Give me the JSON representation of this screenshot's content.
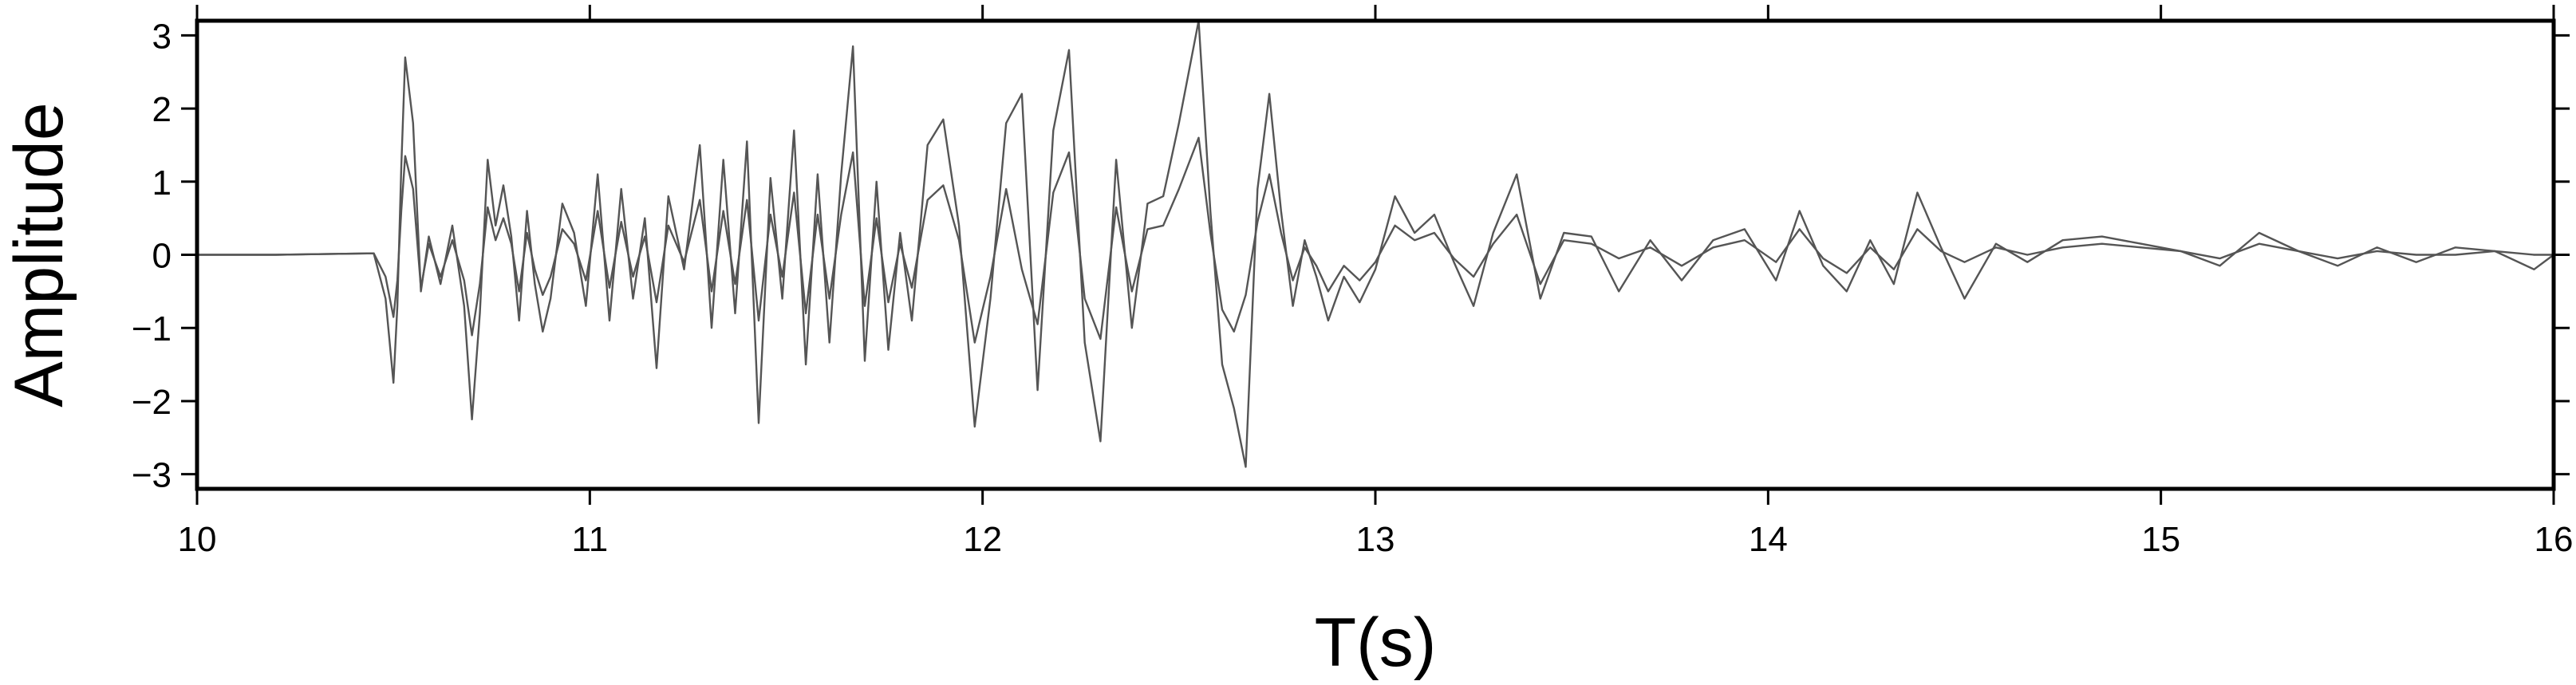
{
  "chart_data": {
    "type": "line",
    "title": "",
    "xlabel": "T(s)",
    "ylabel": "Amplitude",
    "xlim": [
      10,
      16
    ],
    "ylim": [
      -3.2,
      3.2
    ],
    "grid": false,
    "x_ticks": [
      10,
      11,
      12,
      13,
      14,
      15,
      16
    ],
    "x_tick_labels": [
      "10",
      "11",
      "12",
      "13",
      "14",
      "15",
      "16"
    ],
    "y_ticks": [
      -3,
      -2,
      -1,
      0,
      1,
      2,
      3
    ],
    "y_tick_labels": [
      "−3",
      "−2",
      "−1",
      "0",
      "1",
      "2",
      "3"
    ],
    "line_color": "#555555",
    "series": [
      {
        "x": [
          10,
          10.2,
          10.45,
          10.48,
          10.5,
          10.51,
          10.52,
          10.53,
          10.55,
          10.57,
          10.59,
          10.62,
          10.65,
          10.68,
          10.7,
          10.72,
          10.74,
          10.76,
          10.78,
          10.8,
          10.82,
          10.84,
          10.86,
          10.88,
          10.9,
          10.93,
          10.96,
          10.99,
          11.02,
          11.05,
          11.08,
          11.11,
          11.14,
          11.17,
          11.2,
          11.24,
          11.28,
          11.31,
          11.34,
          11.37,
          11.4,
          11.43,
          11.46,
          11.49,
          11.52,
          11.55,
          11.58,
          11.61,
          11.64,
          11.67,
          11.7,
          11.73,
          11.76,
          11.79,
          11.82,
          11.86,
          11.9,
          11.94,
          11.98,
          12.02,
          12.06,
          12.1,
          12.14,
          12.18,
          12.22,
          12.26,
          12.3,
          12.34,
          12.38,
          12.42,
          12.46,
          12.5,
          12.55,
          12.58,
          12.61,
          12.64,
          12.67,
          12.7,
          12.73,
          12.76,
          12.79,
          12.82,
          12.85,
          12.88,
          12.92,
          12.96,
          13.0,
          13.05,
          13.1,
          13.15,
          13.2,
          13.25,
          13.3,
          13.36,
          13.42,
          13.48,
          13.55,
          13.62,
          13.7,
          13.78,
          13.86,
          13.94,
          14.02,
          14.08,
          14.14,
          14.2,
          14.26,
          14.32,
          14.38,
          14.44,
          14.5,
          14.58,
          14.66,
          14.75,
          14.85,
          14.95,
          15.05,
          15.15,
          15.25,
          15.35,
          15.45,
          15.55,
          15.65,
          15.75,
          15.85,
          15.95,
          16.0
        ],
        "values": [
          0,
          0,
          0.02,
          -0.3,
          -0.85,
          -0.35,
          0.6,
          1.35,
          0.9,
          -0.45,
          0.15,
          -0.3,
          0.2,
          -0.35,
          -1.1,
          -0.4,
          0.65,
          0.2,
          0.5,
          0.15,
          -0.5,
          0.3,
          -0.2,
          -0.55,
          -0.3,
          0.35,
          0.15,
          -0.35,
          0.6,
          -0.45,
          0.45,
          -0.3,
          0.25,
          -0.65,
          0.4,
          -0.1,
          0.75,
          -0.5,
          0.6,
          -0.4,
          0.75,
          -0.9,
          0.55,
          -0.3,
          0.85,
          -0.8,
          0.55,
          -0.6,
          0.55,
          1.4,
          -0.7,
          0.5,
          -0.65,
          0.15,
          -0.45,
          0.75,
          0.95,
          0.2,
          -1.2,
          -0.3,
          0.9,
          -0.2,
          -0.95,
          0.85,
          1.4,
          -0.6,
          -1.15,
          0.65,
          -0.5,
          0.35,
          0.4,
          0.9,
          1.6,
          0.3,
          -0.75,
          -1.05,
          -0.55,
          0.45,
          1.1,
          0.3,
          -0.35,
          0.1,
          -0.15,
          -0.5,
          -0.15,
          -0.35,
          -0.1,
          0.4,
          0.2,
          0.3,
          -0.05,
          -0.3,
          0.15,
          0.55,
          -0.4,
          0.2,
          0.15,
          -0.05,
          0.1,
          -0.15,
          0.1,
          0.2,
          -0.1,
          0.35,
          -0.05,
          -0.25,
          0.1,
          -0.2,
          0.35,
          0.05,
          -0.1,
          0.1,
          0.0,
          0.1,
          0.15,
          0.1,
          0.05,
          -0.05,
          0.15,
          0.05,
          -0.05,
          0.05,
          0.0,
          0.0,
          0.05,
          0.0,
          0.0
        ]
      },
      {
        "x": [
          10,
          10.2,
          10.45,
          10.48,
          10.5,
          10.51,
          10.52,
          10.53,
          10.55,
          10.57,
          10.59,
          10.62,
          10.65,
          10.68,
          10.7,
          10.72,
          10.74,
          10.76,
          10.78,
          10.8,
          10.82,
          10.84,
          10.86,
          10.88,
          10.9,
          10.93,
          10.96,
          10.99,
          11.02,
          11.05,
          11.08,
          11.11,
          11.14,
          11.17,
          11.2,
          11.24,
          11.28,
          11.31,
          11.34,
          11.37,
          11.4,
          11.43,
          11.46,
          11.49,
          11.52,
          11.55,
          11.58,
          11.61,
          11.64,
          11.67,
          11.7,
          11.73,
          11.76,
          11.79,
          11.82,
          11.86,
          11.9,
          11.94,
          11.98,
          12.02,
          12.06,
          12.1,
          12.14,
          12.18,
          12.22,
          12.26,
          12.3,
          12.34,
          12.38,
          12.42,
          12.46,
          12.5,
          12.55,
          12.58,
          12.61,
          12.64,
          12.67,
          12.7,
          12.73,
          12.76,
          12.79,
          12.82,
          12.85,
          12.88,
          12.92,
          12.96,
          13.0,
          13.05,
          13.1,
          13.15,
          13.2,
          13.25,
          13.3,
          13.36,
          13.42,
          13.48,
          13.55,
          13.62,
          13.7,
          13.78,
          13.86,
          13.94,
          14.02,
          14.08,
          14.14,
          14.2,
          14.26,
          14.32,
          14.38,
          14.44,
          14.5,
          14.58,
          14.66,
          14.75,
          14.85,
          14.95,
          15.05,
          15.15,
          15.25,
          15.35,
          15.45,
          15.55,
          15.65,
          15.75,
          15.85,
          15.95,
          16.0
        ],
        "values": [
          0,
          0,
          0.02,
          -0.6,
          -1.75,
          -0.7,
          1.2,
          2.7,
          1.8,
          -0.5,
          0.25,
          -0.4,
          0.4,
          -0.7,
          -2.25,
          -0.8,
          1.3,
          0.4,
          0.95,
          0.25,
          -0.9,
          0.6,
          -0.4,
          -1.05,
          -0.6,
          0.7,
          0.3,
          -0.7,
          1.1,
          -0.9,
          0.9,
          -0.6,
          0.5,
          -1.55,
          0.8,
          -0.2,
          1.5,
          -1.0,
          1.3,
          -0.8,
          1.55,
          -2.3,
          1.05,
          -0.6,
          1.7,
          -1.5,
          1.1,
          -1.2,
          1.1,
          2.85,
          -1.45,
          1.0,
          -1.3,
          0.3,
          -0.9,
          1.5,
          1.85,
          0.4,
          -2.35,
          -0.6,
          1.8,
          2.2,
          -1.85,
          1.7,
          2.8,
          -1.2,
          -2.55,
          1.3,
          -1.0,
          0.7,
          0.8,
          1.8,
          3.2,
          0.6,
          -1.5,
          -2.1,
          -2.9,
          0.9,
          2.2,
          0.6,
          -0.7,
          0.2,
          -0.3,
          -0.9,
          -0.3,
          -0.65,
          -0.2,
          0.8,
          0.3,
          0.55,
          -0.1,
          -0.7,
          0.3,
          1.1,
          -0.6,
          0.3,
          0.25,
          -0.5,
          0.2,
          -0.35,
          0.2,
          0.35,
          -0.35,
          0.6,
          -0.15,
          -0.5,
          0.2,
          -0.4,
          0.85,
          0.1,
          -0.6,
          0.15,
          -0.1,
          0.2,
          0.25,
          0.15,
          0.05,
          -0.15,
          0.3,
          0.05,
          -0.15,
          0.1,
          -0.1,
          0.1,
          0.05,
          -0.2,
          0.0
        ]
      }
    ]
  }
}
